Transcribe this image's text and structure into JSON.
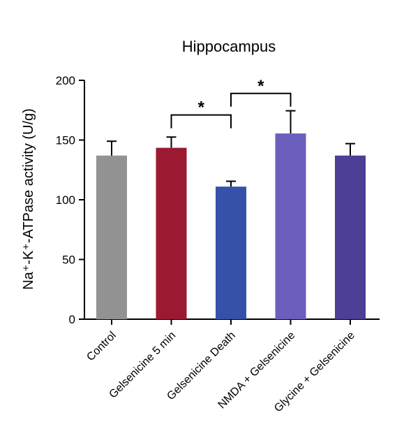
{
  "chart_data": {
    "type": "bar",
    "title": "Hippocampus",
    "ylabel": "Na⁺-K⁺-ATPase activity (U/g)",
    "ylim": [
      0,
      200
    ],
    "yticks": [
      0,
      50,
      100,
      150,
      200
    ],
    "ytick_labels": [
      "0",
      "50",
      "100",
      "150",
      "200"
    ],
    "categories": [
      "Control",
      "Gelsenicine 5 min",
      "Gelsenicine Death",
      "NMDA + Gelsenicine",
      "Glycine + Gelsenicine"
    ],
    "values": [
      137,
      143.5,
      111,
      155.5,
      137
    ],
    "errors": [
      12,
      9,
      4.5,
      19,
      10
    ],
    "colors": [
      "#929292",
      "#9b1a31",
      "#3652a8",
      "#6a5fbd",
      "#4d3e96"
    ],
    "significance": [
      {
        "from": 1,
        "to": 2,
        "label": "*",
        "y": 171
      },
      {
        "from": 2,
        "to": 3,
        "label": "*",
        "y": 189
      }
    ],
    "grid": false
  }
}
